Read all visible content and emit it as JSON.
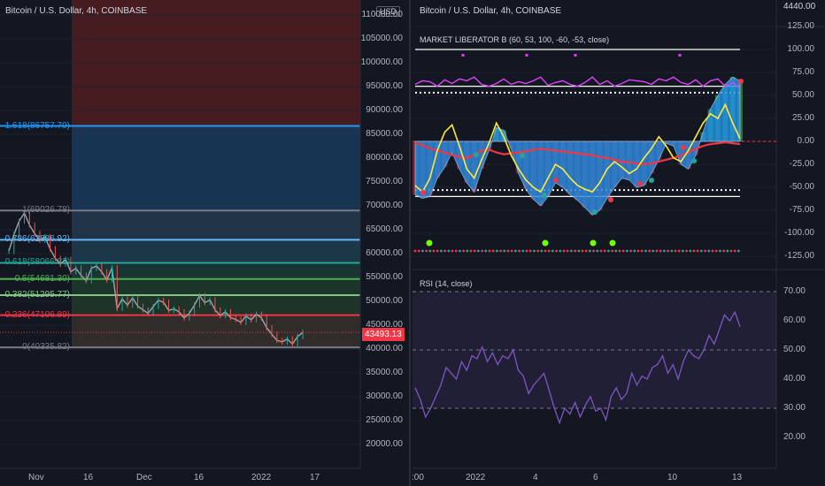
{
  "left": {
    "title": "Bitcoin / U.S. Dollar, 4h, COINBASE",
    "currency": "USD",
    "last_price": "43493.13",
    "price_ticks": [
      "110000.00",
      "105000.00",
      "100000.00",
      "95000.00",
      "90000.00",
      "85000.00",
      "80000.00",
      "75000.00",
      "70000.00",
      "65000.00",
      "60000.00",
      "55000.00",
      "50000.00",
      "45000.00",
      "40000.00",
      "35000.00",
      "30000.00",
      "25000.00",
      "20000.00"
    ],
    "time_ticks": [
      "Nov",
      "16",
      "Dec",
      "16",
      "2022",
      "17"
    ],
    "fib_levels": [
      {
        "label": "1.618(86757.79)",
        "ratio": 1.618,
        "price": 86757.79,
        "color": "#2196f3"
      },
      {
        "label": "1(69026.78)",
        "ratio": 1,
        "price": 69026.78,
        "color": "#787b86"
      },
      {
        "label": "0.786(62886.92)",
        "ratio": 0.786,
        "price": 62886.92,
        "color": "#64b5f6"
      },
      {
        "label": "0.618(58066.83)",
        "ratio": 0.618,
        "price": 58066.83,
        "color": "#26a69a"
      },
      {
        "label": "0.5(54681.30)",
        "ratio": 0.5,
        "price": 54681.3,
        "color": "#4caf50"
      },
      {
        "label": "0.382(51295.77)",
        "ratio": 0.382,
        "price": 51295.77,
        "color": "#81c784"
      },
      {
        "label": "0.236(47106.89)",
        "ratio": 0.236,
        "price": 47106.89,
        "color": "#f23645"
      },
      {
        "label": "0(40335.82)",
        "ratio": 0,
        "price": 40335.82,
        "color": "#787b86"
      }
    ],
    "price_series": [
      60500,
      64000,
      66800,
      68500,
      66000,
      64200,
      62800,
      63500,
      61000,
      59000,
      57800,
      58800,
      56200,
      56900,
      55500,
      54300,
      56900,
      57400,
      56200,
      54500,
      57000,
      48500,
      50500,
      49200,
      50700,
      49000,
      48200,
      47500,
      48900,
      50200,
      49800,
      48100,
      48400,
      47800,
      46500,
      47500,
      49200,
      51200,
      49700,
      50300,
      48200,
      47000,
      47800,
      46600,
      46200,
      45600,
      46900,
      46100,
      47300,
      46500,
      44500,
      43100,
      41800,
      41500,
      42100,
      41100,
      42600,
      43493
    ]
  },
  "right": {
    "title": "Bitcoin / U.S. Dollar, 4h, COINBASE",
    "top_price": "4440.00",
    "indicator1": {
      "name": "MARKET LIBERATOR B (60, 53, 100, -60, -53, close)",
      "ticks": [
        "125.00",
        "100.00",
        "75.00",
        "50.00",
        "25.00",
        "0.00",
        "-25.00",
        "-50.00",
        "-75.00",
        "-100.00",
        "-125.00"
      ],
      "levels": [
        100,
        60,
        53,
        -53,
        -60
      ],
      "wave_series": [
        -58,
        -62,
        -60,
        -40,
        -28,
        -12,
        -30,
        -45,
        -55,
        -30,
        -10,
        15,
        12,
        -8,
        -35,
        -52,
        -63,
        -70,
        -60,
        -45,
        -50,
        -58,
        -64,
        -72,
        -80,
        -75,
        -62,
        -50,
        -40,
        -42,
        -50,
        -48,
        -35,
        -20,
        -2,
        -5,
        -25,
        -30,
        -15,
        10,
        35,
        50,
        62,
        70,
        66
      ],
      "fast_series": [
        -48,
        -55,
        -40,
        -10,
        10,
        18,
        -5,
        -30,
        -40,
        -20,
        -2,
        20,
        5,
        -15,
        -30,
        -42,
        -50,
        -55,
        -40,
        -25,
        -30,
        -40,
        -48,
        -52,
        -55,
        -45,
        -30,
        -22,
        -28,
        -35,
        -30,
        -18,
        -8,
        5,
        -5,
        -18,
        -22,
        -10,
        5,
        20,
        30,
        25,
        40,
        20,
        3
      ],
      "signal_series": [
        -2,
        -4,
        -8,
        -10,
        -12,
        -15,
        -17,
        -18,
        -15,
        -10,
        -9,
        -12,
        -14,
        -13,
        -12,
        -11,
        -9,
        -8,
        -9,
        -10,
        -11,
        -12,
        -13,
        -14,
        -15,
        -17,
        -18,
        -20,
        -22,
        -23,
        -24,
        -25,
        -24,
        -22,
        -20,
        -18,
        -15,
        -12,
        -8,
        -5,
        -3,
        -2,
        -1,
        -2,
        -3
      ],
      "magenta_series": [
        62,
        66,
        65,
        60,
        67,
        63,
        68,
        66,
        70,
        62,
        60,
        63,
        68,
        62,
        65,
        63,
        66,
        70,
        61,
        64,
        66,
        62,
        60,
        64,
        70,
        62,
        66,
        60,
        63,
        67,
        66,
        65,
        62,
        68,
        66,
        70,
        64,
        62,
        67,
        60,
        66,
        68,
        60,
        64,
        58
      ],
      "time_ticks": [
        ":00",
        "2022",
        "4",
        "6",
        "10",
        "13"
      ]
    },
    "indicator2": {
      "name": "RSI (14, close)",
      "ticks": [
        "70.00",
        "60.00",
        "50.00",
        "40.00",
        "30.00",
        "20.00"
      ],
      "levels": [
        70,
        50,
        30
      ],
      "rsi_series": [
        37,
        33,
        27,
        30,
        34,
        38,
        44,
        42,
        40,
        46,
        43,
        48,
        47,
        51,
        46,
        49,
        45,
        48,
        47,
        50,
        43,
        41,
        35,
        38,
        40,
        42,
        36,
        30,
        25,
        30,
        28,
        32,
        27,
        31,
        34,
        29,
        30,
        26,
        34,
        37,
        33,
        35,
        42,
        38,
        41,
        40,
        44,
        45,
        48,
        42,
        45,
        40,
        46,
        50,
        48,
        47,
        50,
        55,
        52,
        57,
        62,
        60,
        63,
        58
      ]
    },
    "colors": {
      "rsi_line": "#7e57c2",
      "rsi_band": "#7e57c2",
      "wave": "#2196f3",
      "fast": "#ffeb3b",
      "signal": "#f23645",
      "magenta": "#e040fb",
      "up_bar": "#4caf50",
      "down_bar": "#b22833"
    }
  }
}
